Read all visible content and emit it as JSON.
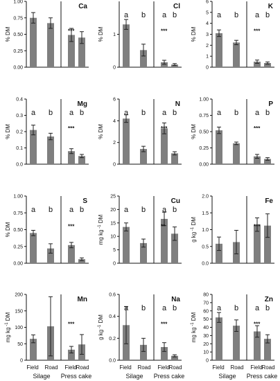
{
  "chart_data": [
    {
      "type": "bar",
      "title": "Ca",
      "ylabel": "% DM",
      "ylim": [
        0,
        1.0
      ],
      "yticks": [
        "0.00",
        "0.25",
        "0.50",
        "0.75",
        "1.00"
      ],
      "tickvals": [
        0,
        0.25,
        0.5,
        0.75,
        1.0
      ],
      "values": [
        0.75,
        0.67,
        0.49,
        0.45
      ],
      "errors": [
        0.08,
        0.08,
        0.1,
        0.09
      ],
      "letters": [
        "",
        "",
        "",
        ""
      ],
      "stars": "***",
      "stars_at": 2
    },
    {
      "type": "bar",
      "title": "Cl",
      "ylabel": "% DM",
      "ylim": [
        0,
        2.0
      ],
      "yticks": [
        "0",
        "1"
      ],
      "tickvals": [
        0,
        1
      ],
      "values": [
        1.3,
        0.52,
        0.15,
        0.08
      ],
      "errors": [
        0.15,
        0.18,
        0.06,
        0.03
      ],
      "letters": [
        "a",
        "b",
        "a",
        "b"
      ],
      "stars": "***",
      "stars_at": 2
    },
    {
      "type": "bar",
      "title": "K",
      "ylabel": "% DM",
      "ylim": [
        0,
        6.0
      ],
      "yticks": [
        "0",
        "1",
        "2",
        "3",
        "4",
        "5",
        "6"
      ],
      "tickvals": [
        0,
        1,
        2,
        3,
        4,
        5,
        6
      ],
      "values": [
        3.1,
        2.25,
        0.5,
        0.38
      ],
      "errors": [
        0.3,
        0.2,
        0.15,
        0.1
      ],
      "letters": [
        "a",
        "b",
        "a",
        "b"
      ],
      "stars": "***",
      "stars_at": 2
    },
    {
      "type": "bar",
      "title": "Mg",
      "ylabel": "% DM",
      "ylim": [
        0,
        0.4
      ],
      "yticks": [
        "0.0",
        "0.1",
        "0.2",
        "0.3",
        "0.4"
      ],
      "tickvals": [
        0,
        0.1,
        0.2,
        0.3,
        0.4
      ],
      "values": [
        0.21,
        0.17,
        0.08,
        0.05
      ],
      "errors": [
        0.03,
        0.02,
        0.015,
        0.01
      ],
      "letters": [
        "a",
        "b",
        "a",
        "b"
      ],
      "stars": "***",
      "stars_at": 2
    },
    {
      "type": "bar",
      "title": "N",
      "ylabel": "% DM",
      "ylim": [
        0,
        6.0
      ],
      "yticks": [
        "0",
        "2",
        "4",
        "6"
      ],
      "tickvals": [
        0,
        2,
        4,
        6
      ],
      "values": [
        4.2,
        1.4,
        3.3,
        1.0
      ],
      "errors": [
        0.35,
        0.25,
        0.5,
        0.15
      ],
      "letters": [
        "a",
        "b",
        "a",
        "b"
      ],
      "stars": "***",
      "stars_at": 2
    },
    {
      "type": "bar",
      "title": "P",
      "ylabel": "% DM",
      "ylim": [
        0,
        1.0
      ],
      "yticks": [
        "0.00",
        "0.25",
        "0.50",
        "0.75",
        "1.00"
      ],
      "tickvals": [
        0,
        0.25,
        0.5,
        0.75,
        1.0
      ],
      "values": [
        0.52,
        0.32,
        0.12,
        0.08
      ],
      "errors": [
        0.05,
        0.02,
        0.03,
        0.02
      ],
      "letters": [
        "a",
        "b",
        "a",
        "b"
      ],
      "stars": "***",
      "stars_at": 2
    },
    {
      "type": "bar",
      "title": "S",
      "ylabel": "% DM",
      "ylim": [
        0,
        1.0
      ],
      "yticks": [
        "0.00",
        "0.25",
        "0.50",
        "0.75",
        "1.00"
      ],
      "tickvals": [
        0,
        0.25,
        0.5,
        0.75,
        1.0
      ],
      "values": [
        0.45,
        0.22,
        0.27,
        0.06
      ],
      "errors": [
        0.04,
        0.07,
        0.04,
        0.02
      ],
      "letters": [
        "a",
        "b",
        "a",
        "b"
      ],
      "stars": "***",
      "stars_at": 2
    },
    {
      "type": "bar",
      "title": "Cu",
      "ylabel": "mg kg",
      "ylabel_sup": "-1",
      "ylabel_tail": " DM",
      "ylim": [
        0,
        25
      ],
      "yticks": [
        "0",
        "5",
        "10",
        "15",
        "20",
        "25"
      ],
      "tickvals": [
        0,
        5,
        10,
        15,
        20,
        25
      ],
      "values": [
        13.5,
        7.5,
        16.5,
        11.0
      ],
      "errors": [
        1.5,
        1.5,
        2.5,
        2.5
      ],
      "letters": [
        "a",
        "b",
        "a",
        "b"
      ],
      "stars": "**",
      "stars_at": 2
    },
    {
      "type": "bar",
      "title": "Fe",
      "ylabel": "g kg",
      "ylabel_sup": "-1",
      "ylabel_tail": " DM",
      "ylim": [
        0,
        2.0
      ],
      "yticks": [
        "0.0",
        "0.5",
        "1.0",
        "1.5",
        "2.0"
      ],
      "tickvals": [
        0,
        0.5,
        1.0,
        1.5,
        2.0
      ],
      "values": [
        0.58,
        0.63,
        1.15,
        1.12
      ],
      "errors": [
        0.2,
        0.35,
        0.2,
        0.35
      ],
      "letters": [
        "",
        "",
        "",
        ""
      ],
      "stars": "***",
      "stars_at": 2
    },
    {
      "type": "bar",
      "title": "Mn",
      "ylabel": "mg kg",
      "ylabel_sup": "-1",
      "ylabel_tail": " DM",
      "ylim": [
        0,
        200
      ],
      "yticks": [
        "0",
        "50",
        "100",
        "150",
        "200"
      ],
      "tickvals": [
        0,
        50,
        100,
        150,
        200
      ],
      "values": [
        65,
        103,
        32,
        48
      ],
      "errors": [
        12,
        90,
        10,
        30
      ],
      "letters": [
        "",
        "",
        "",
        ""
      ],
      "stars": "***",
      "stars_at": 2
    },
    {
      "type": "bar",
      "title": "Na",
      "ylabel": "g kg",
      "ylabel_sup": "-1",
      "ylabel_tail": " DM",
      "ylim": [
        0,
        0.6
      ],
      "yticks": [
        "0.0",
        "0.2",
        "0.4",
        "0.6"
      ],
      "tickvals": [
        0,
        0.2,
        0.4,
        0.6
      ],
      "values": [
        0.32,
        0.14,
        0.12,
        0.04
      ],
      "errors": [
        0.17,
        0.06,
        0.04,
        0.01
      ],
      "letters": [
        "a",
        "b",
        "a",
        "b"
      ],
      "stars": "***",
      "stars_at": 2
    },
    {
      "type": "bar",
      "title": "Zn",
      "ylabel": "mg kg",
      "ylabel_sup": "-1",
      "ylabel_tail": " DM",
      "ylim": [
        0,
        80
      ],
      "yticks": [
        "0",
        "10",
        "20",
        "30",
        "40",
        "50",
        "60",
        "70",
        "80"
      ],
      "tickvals": [
        0,
        10,
        20,
        30,
        40,
        50,
        60,
        70,
        80
      ],
      "values": [
        52,
        42,
        35,
        26
      ],
      "errors": [
        6,
        7,
        7,
        5
      ],
      "letters": [
        "a",
        "b",
        "a",
        "b"
      ],
      "stars": "***",
      "stars_at": 2
    }
  ],
  "xlabels": {
    "categories": [
      "Field",
      "Road",
      "Field",
      "Road"
    ],
    "groups": [
      "Silage",
      "Press cake"
    ]
  },
  "colors": {
    "bar": "#7f7f7f",
    "axis": "#111111",
    "text": "#111111"
  }
}
